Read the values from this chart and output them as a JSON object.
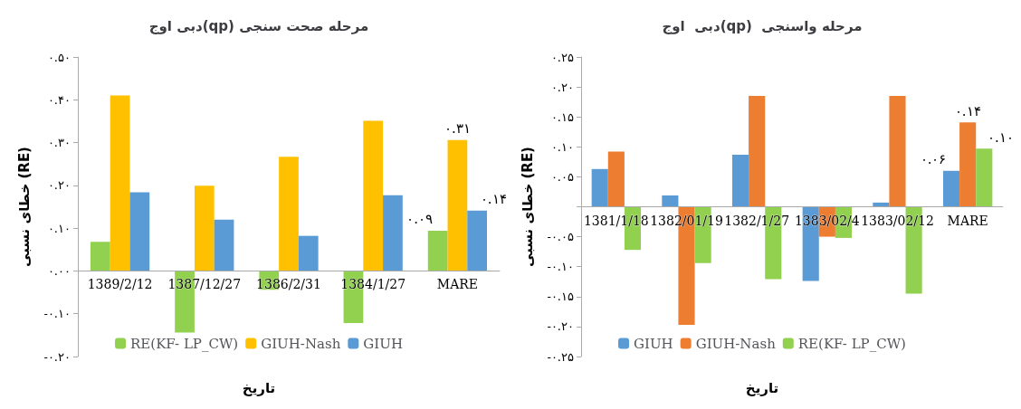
{
  "chart_data": [
    {
      "type": "bar",
      "title": "دبی اوج(qp) مرحله صحت سنجی",
      "xlabel": "تاریخ",
      "ylabel": "خطای نسبی (RE)",
      "categories": [
        "1389/2/12",
        "1387/12/27",
        "1386/2/31",
        "1384/1/27",
        "MARE"
      ],
      "series": [
        {
          "name": "RE(KF- LP_CW)",
          "color": "#92d050",
          "values": [
            0.068,
            -0.144,
            -0.044,
            -0.122,
            0.094
          ],
          "value_labels": [
            null,
            null,
            null,
            null,
            "۰.۰۹"
          ]
        },
        {
          "name": "GIUH-Nash",
          "color": "#ffc000",
          "values": [
            0.41,
            0.199,
            0.267,
            0.351,
            0.306
          ],
          "value_labels": [
            null,
            null,
            null,
            null,
            "۰.۳۱"
          ]
        },
        {
          "name": "GIUH",
          "color": "#5b9bd5",
          "values": [
            0.184,
            0.12,
            0.082,
            0.177,
            0.141
          ],
          "value_labels": [
            null,
            null,
            null,
            null,
            "۰.۱۴"
          ]
        }
      ],
      "ylim": [
        -0.2,
        0.5
      ],
      "yticks": [
        {
          "value": -0.2,
          "label": "-۰.۲۰"
        },
        {
          "value": -0.1,
          "label": "-۰.۱۰"
        },
        {
          "value": 0,
          "label": "۰.۰۰"
        },
        {
          "value": 0.1,
          "label": "۰.۱۰"
        },
        {
          "value": 0.2,
          "label": "۰.۲۰"
        },
        {
          "value": 0.3,
          "label": "۰.۳۰"
        },
        {
          "value": 0.4,
          "label": "۰.۴۰"
        },
        {
          "value": 0.5,
          "label": "۰.۵۰"
        }
      ],
      "legend": "bottom"
    },
    {
      "type": "bar",
      "title": "دبی  اوج(qp)  مرحله واسنجی",
      "xlabel": "تاریخ",
      "ylabel": "خطای نسبی (RE)",
      "categories": [
        "1381/1/18",
        "1382/01/19",
        "1382/1/27",
        "1383/02/4",
        "1383/02/12",
        "MARE"
      ],
      "series": [
        {
          "name": "GIUH",
          "color": "#5b9bd5",
          "values": [
            0.063,
            0.019,
            0.087,
            -0.124,
            0.007,
            0.06
          ],
          "value_labels": [
            null,
            null,
            null,
            null,
            null,
            "۰.۰۶"
          ]
        },
        {
          "name": "GIUH-Nash",
          "color": "#ed7d31",
          "values": [
            0.092,
            -0.197,
            0.185,
            -0.05,
            0.185,
            0.141
          ],
          "value_labels": [
            null,
            null,
            null,
            null,
            null,
            "۰.۱۴"
          ]
        },
        {
          "name": "RE(KF- LP_CW)",
          "color": "#92d050",
          "values": [
            -0.072,
            -0.094,
            -0.121,
            -0.052,
            -0.145,
            0.097
          ],
          "value_labels": [
            null,
            null,
            null,
            null,
            null,
            "۰.۱۰"
          ]
        }
      ],
      "ylim": [
        -0.25,
        0.25
      ],
      "yticks": [
        {
          "value": -0.25,
          "label": "-۰.۲۵"
        },
        {
          "value": -0.2,
          "label": "-۰.۲۰"
        },
        {
          "value": -0.15,
          "label": "-۰.۱۵"
        },
        {
          "value": -0.1,
          "label": "-۰.۱۰"
        },
        {
          "value": -0.05,
          "label": "-۰.۰۵"
        },
        {
          "value": 0,
          "label": null
        },
        {
          "value": 0.05,
          "label": "۰.۰۵"
        },
        {
          "value": 0.1,
          "label": "۰.۱۰"
        },
        {
          "value": 0.15,
          "label": "۰.۱۵"
        },
        {
          "value": 0.2,
          "label": "۰.۲۰"
        },
        {
          "value": 0.25,
          "label": "۰.۲۵"
        }
      ],
      "legend": "bottom"
    }
  ]
}
